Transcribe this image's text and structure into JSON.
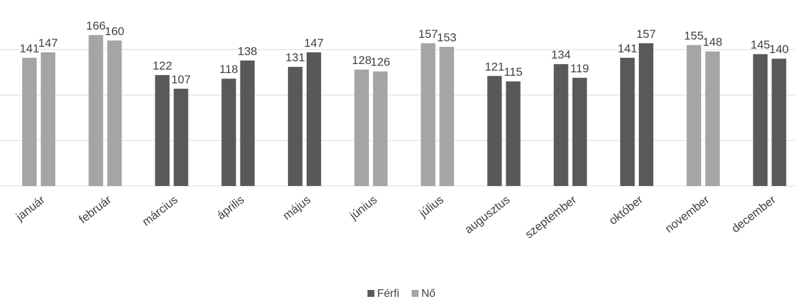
{
  "chart_data": {
    "type": "bar",
    "categories": [
      "január",
      "február",
      "március",
      "április",
      "május",
      "június",
      "július",
      "augusztus",
      "szeptember",
      "október",
      "november",
      "december"
    ],
    "series": [
      {
        "name": "Férfi",
        "values": [
          141,
          166,
          122,
          118,
          131,
          128,
          157,
          121,
          134,
          141,
          155,
          145
        ]
      },
      {
        "name": "Nő",
        "values": [
          147,
          160,
          107,
          138,
          147,
          126,
          153,
          115,
          119,
          157,
          148,
          140
        ]
      }
    ],
    "highlight": [
      false,
      false,
      true,
      true,
      true,
      false,
      false,
      true,
      true,
      true,
      false,
      true
    ],
    "ylim": [
      0,
      175
    ],
    "grid": true,
    "legend": "bottom-center",
    "colors": {
      "ferfi": "#595959",
      "no": "#a5a5a5",
      "grid": "#d9d9d9",
      "text": "#404040"
    }
  }
}
